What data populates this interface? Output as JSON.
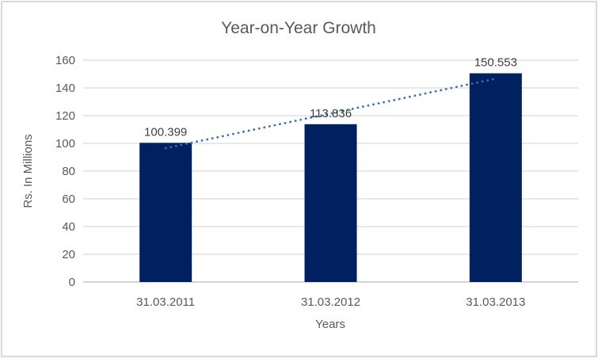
{
  "chart_data": {
    "type": "bar",
    "title": "Year-on-Year Growth",
    "xlabel": "Years",
    "ylabel": "Rs. In Millions",
    "categories": [
      "31.03.2011",
      "31.03.2012",
      "31.03.2013"
    ],
    "values": [
      100.399,
      113.836,
      150.553
    ],
    "value_labels": [
      "100.399",
      "113.836",
      "150.553"
    ],
    "ylim": [
      0,
      160
    ],
    "ytick_step": 20,
    "ytick_labels": [
      "0",
      "20",
      "40",
      "60",
      "80",
      "100",
      "120",
      "140",
      "160"
    ],
    "grid": true,
    "legend_position": "none",
    "trendline": {
      "type": "linear",
      "style": "dotted"
    },
    "colors": {
      "bar": "#002060",
      "trendline": "#3E6DB5",
      "gridline": "#D9D9D9",
      "axis_line": "#C6C6C6",
      "axis_text": "#595959",
      "data_label": "#404040",
      "border": "#D9D9D9",
      "background": "#FFFFFF"
    }
  }
}
